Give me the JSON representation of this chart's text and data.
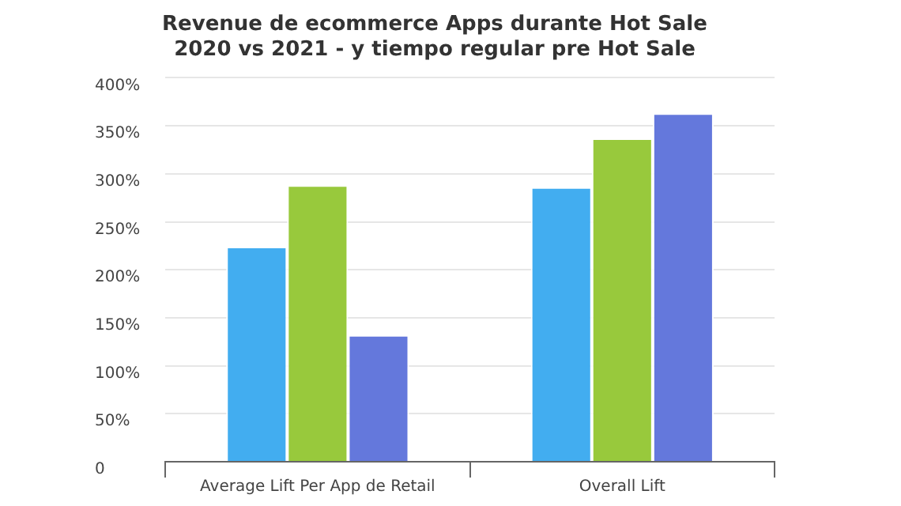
{
  "chart_data": {
    "type": "bar",
    "title": [
      "Revenue de ecommerce Apps durante Hot Sale",
      "2020 vs 2021 - y tiempo regular pre Hot Sale"
    ],
    "categories": [
      "Average Lift Per App de Retail",
      "Overall Lift"
    ],
    "series": [
      {
        "color": "#42adf0",
        "values": [
          224,
          286
        ]
      },
      {
        "color": "#98c93c",
        "values": [
          288,
          337
        ]
      },
      {
        "color": "#6478dc",
        "values": [
          132,
          363
        ]
      }
    ],
    "ylim": [
      0,
      400
    ],
    "yticks": [
      {
        "value": 0,
        "label": "0"
      },
      {
        "value": 50,
        "label": "50%"
      },
      {
        "value": 100,
        "label": "100%"
      },
      {
        "value": 150,
        "label": "150%"
      },
      {
        "value": 200,
        "label": "200%"
      },
      {
        "value": 250,
        "label": "250%"
      },
      {
        "value": 300,
        "label": "300%"
      },
      {
        "value": 350,
        "label": "350%"
      },
      {
        "value": 400,
        "label": "400%"
      }
    ],
    "grid": "y",
    "legend": false
  }
}
